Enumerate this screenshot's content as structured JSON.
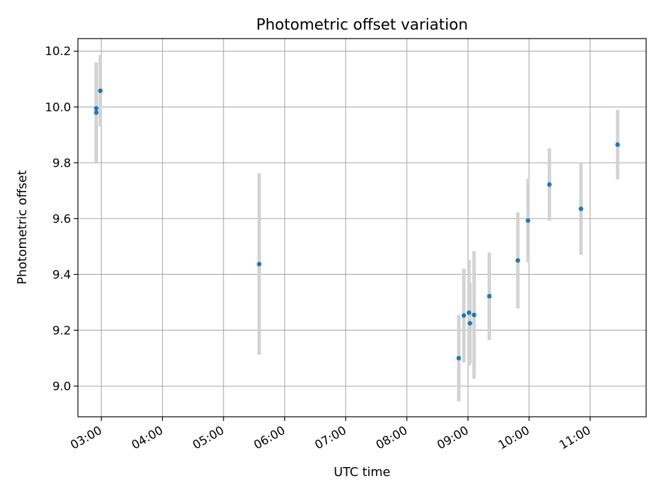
{
  "chart_data": {
    "type": "scatter",
    "title": "Photometric offset variation",
    "xlabel": "UTC time",
    "ylabel": "Photometric offset",
    "xlim": [
      "02:37",
      "11:55"
    ],
    "ylim": [
      8.89,
      10.245
    ],
    "xticks": [
      "03:00",
      "04:00",
      "05:00",
      "06:00",
      "07:00",
      "08:00",
      "09:00",
      "10:00",
      "11:00"
    ],
    "yticks": [
      9.0,
      9.2,
      9.4,
      9.6,
      9.8,
      10.0,
      10.2
    ],
    "grid": true,
    "series": [
      {
        "marker_color": "#1f77b4",
        "errorbar_color": "#d3d3d3",
        "points": [
          {
            "x": "02:55",
            "y": 9.98,
            "err": 0.18
          },
          {
            "x": "02:55",
            "y": 9.995,
            "err": 0.165
          },
          {
            "x": "02:59",
            "y": 10.058,
            "err": 0.128
          },
          {
            "x": "05:35",
            "y": 9.437,
            "err": 0.325
          },
          {
            "x": "08:51",
            "y": 9.1,
            "err": 0.155
          },
          {
            "x": "08:56",
            "y": 9.253,
            "err": 0.168
          },
          {
            "x": "09:01",
            "y": 9.263,
            "err": 0.19
          },
          {
            "x": "09:02",
            "y": 9.225,
            "err": 0.145
          },
          {
            "x": "09:06",
            "y": 9.255,
            "err": 0.228
          },
          {
            "x": "09:21",
            "y": 9.322,
            "err": 0.157
          },
          {
            "x": "09:49",
            "y": 9.45,
            "err": 0.172
          },
          {
            "x": "09:59",
            "y": 9.593,
            "err": 0.15
          },
          {
            "x": "10:20",
            "y": 9.722,
            "err": 0.13
          },
          {
            "x": "10:51",
            "y": 9.635,
            "err": 0.165
          },
          {
            "x": "11:27",
            "y": 9.865,
            "err": 0.125
          }
        ]
      }
    ]
  }
}
